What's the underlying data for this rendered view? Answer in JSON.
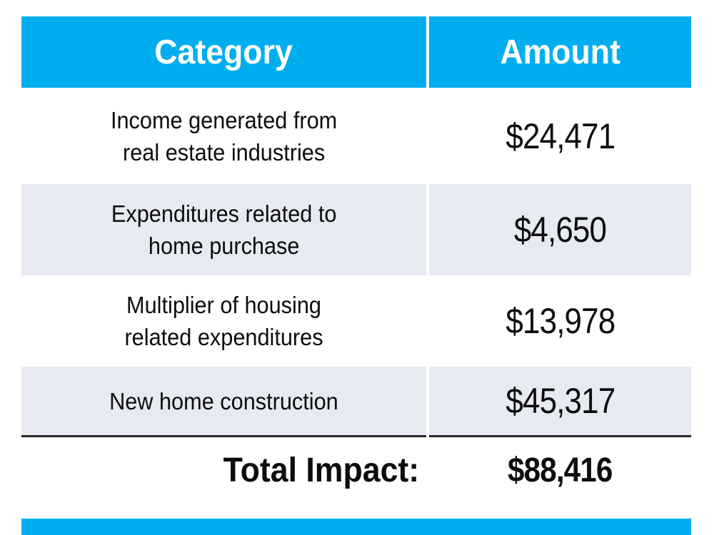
{
  "colors": {
    "header_bg": "#00aeef",
    "header_text": "#ffffff",
    "band_row_bg": "#e7eaf3",
    "plain_row_bg": "#ffffff",
    "total_rule": "#262626",
    "body_text": "#0d0d0d",
    "accent_bar": "#00aeef"
  },
  "table": {
    "header": {
      "category_label": "Category",
      "amount_label": "Amount"
    },
    "rows": [
      {
        "category": "Income generated from\nreal estate industries",
        "amount": "$24,471"
      },
      {
        "category": "Expenditures related to\nhome purchase",
        "amount": "$4,650"
      },
      {
        "category": "Multiplier of housing\nrelated expenditures",
        "amount": "$13,978"
      },
      {
        "category": "New home construction",
        "amount": "$45,317"
      }
    ],
    "total": {
      "label": "Total Impact:",
      "amount": "$88,416"
    }
  },
  "chart_data": {
    "type": "table",
    "columns": [
      "Category",
      "Amount"
    ],
    "rows": [
      [
        "Income generated from real estate industries",
        24471
      ],
      [
        "Expenditures related to home purchase",
        4650
      ],
      [
        "Multiplier of housing related expenditures",
        13978
      ],
      [
        "New home construction",
        45317
      ]
    ],
    "total_label": "Total Impact:",
    "total_value": 88416,
    "layout": "two-column table, cyan header, alternating light-blue banded rows, bold total row under black rule, cyan accent bar at bottom"
  }
}
